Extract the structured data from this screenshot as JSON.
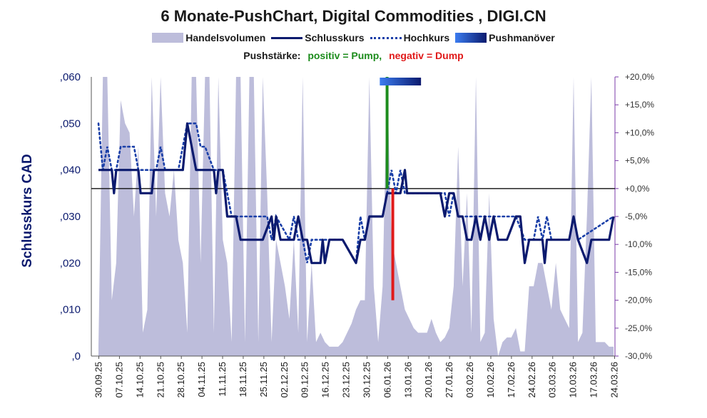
{
  "chart_data": {
    "type": "line",
    "title": "6 Monate-PushChart, Digital Commodities , DIGI.CN",
    "ylabel": "Schlusskurs CAD",
    "legend": {
      "volume": "Handelsvolumen",
      "close": "Schlusskurs",
      "high": "Hochkurs",
      "push": "Pushmanöver"
    },
    "pushstaerke": {
      "label": "Pushstärke:",
      "positive": "positiv = Pump,",
      "negative": "negativ = Dump"
    },
    "ylim": [
      0,
      0.06
    ],
    "y_ticks": [
      0,
      0.01,
      0.02,
      0.03,
      0.04,
      0.05,
      0.06
    ],
    "y_tick_labels": [
      ",0",
      ",010",
      ",020",
      ",030",
      ",040",
      ",050",
      ",060"
    ],
    "y2lim": [
      -30,
      20
    ],
    "y2_ticks": [
      -30,
      -25,
      -20,
      -15,
      -10,
      -5,
      0,
      5,
      10,
      15,
      20
    ],
    "y2_tick_labels": [
      "-30,0%",
      "-25,0%",
      "-20,0%",
      "-15,0%",
      "-10,0%",
      "-5,0%",
      "+0,0%",
      "+5,0%",
      "+10,0%",
      "+15,0%",
      "+20,0%"
    ],
    "x_tick_labels": [
      "30.09.25",
      "07.10.25",
      "14.10.25",
      "21.10.25",
      "28.10.25",
      "04.11.25",
      "11.11.25",
      "18.11.25",
      "25.11.25",
      "02.12.25",
      "09.12.25",
      "16.12.25",
      "23.12.25",
      "30.12.25",
      "06.01.26",
      "13.01.26",
      "20.01.26",
      "27.01.26",
      "03.02.26",
      "10.02.26",
      "17.02.26",
      "24.02.26",
      "03.03.26",
      "10.03.26",
      "17.03.26",
      "24.03.26"
    ],
    "reference_line": 0.036,
    "close": [
      [
        0,
        0.04
      ],
      [
        3,
        0.04
      ],
      [
        3.5,
        0.035
      ],
      [
        4,
        0.04
      ],
      [
        9,
        0.04
      ],
      [
        9.5,
        0.035
      ],
      [
        12,
        0.035
      ],
      [
        12.5,
        0.04
      ],
      [
        19,
        0.04
      ],
      [
        20,
        0.05
      ],
      [
        21,
        0.045
      ],
      [
        22,
        0.04
      ],
      [
        26,
        0.04
      ],
      [
        26.5,
        0.035
      ],
      [
        27,
        0.04
      ],
      [
        28,
        0.04
      ],
      [
        29,
        0.03
      ],
      [
        31,
        0.03
      ],
      [
        32,
        0.025
      ],
      [
        37,
        0.025
      ],
      [
        39,
        0.03
      ],
      [
        39.5,
        0.025
      ],
      [
        40,
        0.03
      ],
      [
        41,
        0.025
      ],
      [
        44,
        0.025
      ],
      [
        45,
        0.03
      ],
      [
        46,
        0.025
      ],
      [
        47,
        0.025
      ],
      [
        48,
        0.02
      ],
      [
        50,
        0.02
      ],
      [
        50.5,
        0.025
      ],
      [
        51,
        0.02
      ],
      [
        52,
        0.025
      ],
      [
        55,
        0.025
      ],
      [
        58,
        0.02
      ],
      [
        59,
        0.025
      ],
      [
        60,
        0.025
      ],
      [
        61,
        0.03
      ],
      [
        64,
        0.03
      ],
      [
        65,
        0.035
      ],
      [
        68,
        0.035
      ],
      [
        69,
        0.04
      ],
      [
        69.5,
        0.035
      ],
      [
        72,
        0.035
      ],
      [
        73,
        0.035
      ],
      [
        77,
        0.035
      ],
      [
        78,
        0.03
      ],
      [
        79,
        0.035
      ],
      [
        80,
        0.035
      ],
      [
        81,
        0.03
      ],
      [
        82,
        0.03
      ],
      [
        83,
        0.025
      ],
      [
        84,
        0.025
      ],
      [
        85,
        0.03
      ],
      [
        86,
        0.025
      ],
      [
        87,
        0.03
      ],
      [
        88,
        0.025
      ],
      [
        89,
        0.03
      ],
      [
        90,
        0.025
      ],
      [
        92,
        0.025
      ],
      [
        94,
        0.03
      ],
      [
        95,
        0.03
      ],
      [
        96,
        0.02
      ],
      [
        97,
        0.025
      ],
      [
        100,
        0.025
      ],
      [
        100.5,
        0.02
      ],
      [
        101,
        0.025
      ],
      [
        106,
        0.025
      ],
      [
        107,
        0.03
      ],
      [
        108,
        0.025
      ],
      [
        110,
        0.02
      ],
      [
        111,
        0.025
      ],
      [
        115,
        0.025
      ],
      [
        116,
        0.03
      ]
    ],
    "high": [
      [
        0,
        0.05
      ],
      [
        1,
        0.04
      ],
      [
        2,
        0.045
      ],
      [
        3,
        0.04
      ],
      [
        4,
        0.04
      ],
      [
        5,
        0.045
      ],
      [
        8,
        0.045
      ],
      [
        9,
        0.04
      ],
      [
        10,
        0.04
      ],
      [
        11,
        0.04
      ],
      [
        13,
        0.04
      ],
      [
        14,
        0.045
      ],
      [
        15,
        0.04
      ],
      [
        18,
        0.04
      ],
      [
        20,
        0.05
      ],
      [
        22,
        0.05
      ],
      [
        23,
        0.045
      ],
      [
        24,
        0.045
      ],
      [
        26,
        0.04
      ],
      [
        28,
        0.04
      ],
      [
        30,
        0.03
      ],
      [
        38,
        0.03
      ],
      [
        39,
        0.025
      ],
      [
        40,
        0.03
      ],
      [
        43,
        0.025
      ],
      [
        44,
        0.03
      ],
      [
        45,
        0.025
      ],
      [
        46,
        0.025
      ],
      [
        47,
        0.02
      ],
      [
        48,
        0.025
      ],
      [
        52,
        0.025
      ],
      [
        53,
        0.025
      ],
      [
        55,
        0.025
      ],
      [
        58,
        0.02
      ],
      [
        59,
        0.03
      ],
      [
        60,
        0.025
      ],
      [
        61,
        0.03
      ],
      [
        64,
        0.03
      ],
      [
        65,
        0.035
      ],
      [
        66,
        0.04
      ],
      [
        67,
        0.035
      ],
      [
        68,
        0.04
      ],
      [
        69,
        0.035
      ],
      [
        72,
        0.035
      ],
      [
        77,
        0.035
      ],
      [
        78,
        0.035
      ],
      [
        79,
        0.03
      ],
      [
        80,
        0.035
      ],
      [
        81,
        0.03
      ],
      [
        82,
        0.03
      ],
      [
        86,
        0.03
      ],
      [
        88,
        0.03
      ],
      [
        90,
        0.03
      ],
      [
        91,
        0.03
      ],
      [
        94,
        0.03
      ],
      [
        96,
        0.025
      ],
      [
        98,
        0.025
      ],
      [
        99,
        0.03
      ],
      [
        100,
        0.025
      ],
      [
        101,
        0.03
      ],
      [
        102,
        0.025
      ],
      [
        106,
        0.025
      ],
      [
        107,
        0.03
      ],
      [
        108,
        0.025
      ],
      [
        116,
        0.03
      ]
    ],
    "volume": [
      [
        0,
        0.002
      ],
      [
        1,
        0.06
      ],
      [
        2,
        0.06
      ],
      [
        3,
        0.012
      ],
      [
        4,
        0.02
      ],
      [
        5,
        0.055
      ],
      [
        6,
        0.05
      ],
      [
        7,
        0.048
      ],
      [
        8,
        0.03
      ],
      [
        9,
        0.045
      ],
      [
        10,
        0.005
      ],
      [
        11,
        0.01
      ],
      [
        12,
        0.06
      ],
      [
        13,
        0.03
      ],
      [
        14,
        0.06
      ],
      [
        15,
        0.035
      ],
      [
        16,
        0.03
      ],
      [
        17,
        0.04
      ],
      [
        18,
        0.025
      ],
      [
        19,
        0.02
      ],
      [
        20,
        0.005
      ],
      [
        21,
        0.06
      ],
      [
        22,
        0.06
      ],
      [
        23,
        0.02
      ],
      [
        24,
        0.06
      ],
      [
        25,
        0.06
      ],
      [
        26,
        0.005
      ],
      [
        27,
        0.06
      ],
      [
        28,
        0.025
      ],
      [
        29,
        0.02
      ],
      [
        30,
        0.003
      ],
      [
        31,
        0.06
      ],
      [
        32,
        0.06
      ],
      [
        33,
        0.003
      ],
      [
        34,
        0.06
      ],
      [
        35,
        0.06
      ],
      [
        36,
        0.003
      ],
      [
        37,
        0.06
      ],
      [
        38,
        0.035
      ],
      [
        39,
        0.003
      ],
      [
        40,
        0.025
      ],
      [
        41,
        0.02
      ],
      [
        42,
        0.015
      ],
      [
        43,
        0.008
      ],
      [
        44,
        0.025
      ],
      [
        45,
        0.005
      ],
      [
        46,
        0.06
      ],
      [
        47,
        0.003
      ],
      [
        48,
        0.02
      ],
      [
        49,
        0.003
      ],
      [
        50,
        0.005
      ],
      [
        51,
        0.003
      ],
      [
        52,
        0.002
      ],
      [
        53,
        0.002
      ],
      [
        54,
        0.002
      ],
      [
        55,
        0.003
      ],
      [
        56,
        0.005
      ],
      [
        57,
        0.007
      ],
      [
        58,
        0.01
      ],
      [
        59,
        0.012
      ],
      [
        60,
        0.012
      ],
      [
        61,
        0.06
      ],
      [
        62,
        0.015
      ],
      [
        63,
        0.003
      ],
      [
        64,
        0.015
      ],
      [
        65,
        0.06
      ],
      [
        66,
        0.025
      ],
      [
        67,
        0.02
      ],
      [
        68,
        0.015
      ],
      [
        69,
        0.01
      ],
      [
        70,
        0.008
      ],
      [
        71,
        0.006
      ],
      [
        72,
        0.005
      ],
      [
        73,
        0.005
      ],
      [
        74,
        0.005
      ],
      [
        75,
        0.008
      ],
      [
        76,
        0.005
      ],
      [
        77,
        0.003
      ],
      [
        78,
        0.004
      ],
      [
        79,
        0.006
      ],
      [
        80,
        0.015
      ],
      [
        81,
        0.045
      ],
      [
        82,
        0.015
      ],
      [
        83,
        0.035
      ],
      [
        84,
        0.005
      ],
      [
        85,
        0.06
      ],
      [
        86,
        0.003
      ],
      [
        87,
        0.005
      ],
      [
        88,
        0.035
      ],
      [
        89,
        0.008
      ],
      [
        90,
        0.0
      ],
      [
        91,
        0.003
      ],
      [
        92,
        0.004
      ],
      [
        93,
        0.004
      ],
      [
        94,
        0.006
      ],
      [
        95,
        0.001
      ],
      [
        96,
        0.001
      ],
      [
        97,
        0.015
      ],
      [
        98,
        0.015
      ],
      [
        99,
        0.02
      ],
      [
        100,
        0.02
      ],
      [
        101,
        0.015
      ],
      [
        102,
        0.01
      ],
      [
        103,
        0.02
      ],
      [
        104,
        0.01
      ],
      [
        105,
        0.008
      ],
      [
        106,
        0.006
      ],
      [
        107,
        0.06
      ],
      [
        108,
        0.003
      ],
      [
        109,
        0.005
      ],
      [
        110,
        0.03
      ],
      [
        111,
        0.06
      ],
      [
        112,
        0.003
      ],
      [
        113,
        0.003
      ],
      [
        114,
        0.003
      ],
      [
        115,
        0.002
      ],
      [
        116,
        0.002
      ]
    ],
    "push_events": [
      {
        "x": 65,
        "pump": 20,
        "dump": -20
      }
    ],
    "push_band": {
      "x_start": 64,
      "x_end": 72
    },
    "colors": {
      "volume": "#bdbddb",
      "close": "#0b1a6e",
      "high": "#1a3fa8",
      "pump": "#1c8c1c",
      "dump": "#e01a1a",
      "grad_start": "#3b7cf0",
      "grad_end": "#0b1a6e",
      "axis_right": "#7a3aa8"
    }
  }
}
